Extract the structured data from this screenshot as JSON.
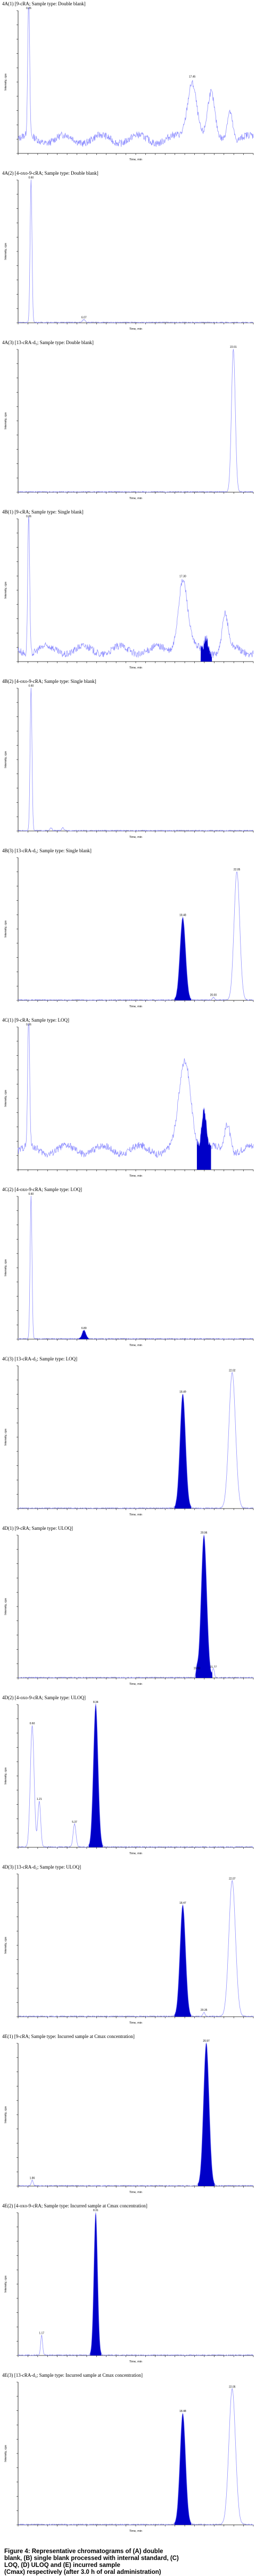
{
  "caption": {
    "line1": "Figure 4: Representative chromatograms of (A) double",
    "line2": "blank, (B) single blank processed with internal standard, (C)",
    "line3": "LOQ, (D) ULOQ and (E) incurred sample",
    "line4_pre": "(Cmax) respectively (after 3.0 h of oral administration)"
  },
  "colors": {
    "trace": "#8c8cff",
    "fill": "#0000c8",
    "axis": "#000000",
    "grid": "#cccccc"
  },
  "chart_data": [
    {
      "type": "line",
      "title": "4A(1) [9-cRA; Sample type: Double blank]",
      "ylabel": "Intensity, cps",
      "xlabel": "Time, min",
      "ylim": [
        0,
        1
      ],
      "xlim": [
        0,
        1
      ],
      "noise": true,
      "baseline": 0.1,
      "peaks": [
        {
          "x": 0.045,
          "h": 1.0,
          "w": 0.004,
          "fill": false,
          "label": "0.26"
        },
        {
          "x": 0.74,
          "h": 0.42,
          "w": 0.02,
          "fill": false,
          "label": "17.45"
        },
        {
          "x": 0.82,
          "h": 0.3,
          "w": 0.015,
          "fill": false,
          "label": ""
        },
        {
          "x": 0.9,
          "h": 0.22,
          "w": 0.012,
          "fill": false,
          "label": ""
        }
      ]
    },
    {
      "type": "line",
      "title": "4A(2) [4-oxo-9-cRA; Sample type: Double blank]",
      "ylabel": "Intensity, cps",
      "xlabel": "Time, min",
      "ylim": [
        0,
        1
      ],
      "xlim": [
        0,
        1
      ],
      "noise": false,
      "baseline": 0.0,
      "peaks": [
        {
          "x": 0.055,
          "h": 1.0,
          "w": 0.004,
          "fill": false,
          "label": "0.60"
        },
        {
          "x": 0.28,
          "h": 0.02,
          "w": 0.006,
          "fill": false,
          "label": "6.07"
        }
      ]
    },
    {
      "type": "line",
      "title": "4A(3) [13-cRA-d₅; Sample type: Double blank]",
      "ylabel": "Intensity, cps",
      "xlabel": "Time, min",
      "ylim": [
        0,
        1
      ],
      "xlim": [
        0,
        1
      ],
      "noise": false,
      "baseline": 0.0,
      "peaks": [
        {
          "x": 0.915,
          "h": 1.0,
          "w": 0.008,
          "fill": false,
          "label": "22.01"
        }
      ]
    },
    {
      "type": "line",
      "title": "4B(1) [9-cRA; Sample type: Single blank]",
      "ylabel": "Intensity, cps",
      "xlabel": "Time, min",
      "ylim": [
        0,
        1
      ],
      "xlim": [
        0,
        1
      ],
      "noise": true,
      "baseline": 0.08,
      "peaks": [
        {
          "x": 0.045,
          "h": 1.0,
          "w": 0.004,
          "fill": false,
          "label": "0.26"
        },
        {
          "x": 0.7,
          "h": 0.5,
          "w": 0.02,
          "fill": false,
          "label": "17.30"
        },
        {
          "x": 0.8,
          "h": 0.1,
          "w": 0.008,
          "fill": true,
          "label": ""
        },
        {
          "x": 0.88,
          "h": 0.24,
          "w": 0.012,
          "fill": false,
          "label": ""
        }
      ]
    },
    {
      "type": "line",
      "title": "4B(2) [4-oxo-9-cRA; Sample type: Single blank]",
      "ylabel": "Intensity, cps",
      "xlabel": "Time, min",
      "ylim": [
        0,
        1
      ],
      "xlim": [
        0,
        1
      ],
      "noise": false,
      "baseline": 0.0,
      "peaks": [
        {
          "x": 0.055,
          "h": 1.0,
          "w": 0.004,
          "fill": false,
          "label": "0.60"
        },
        {
          "x": 0.14,
          "h": 0.02,
          "w": 0.004,
          "fill": false,
          "label": ""
        },
        {
          "x": 0.19,
          "h": 0.02,
          "w": 0.004,
          "fill": false,
          "label": ""
        }
      ]
    },
    {
      "type": "line",
      "title": "4B(3) [13-cRA-d₅; Sample type: Single blank]",
      "ylabel": "Intensity, cps",
      "xlabel": "Time, min",
      "ylim": [
        0,
        1
      ],
      "xlim": [
        0,
        1
      ],
      "noise": false,
      "baseline": 0.0,
      "peaks": [
        {
          "x": 0.7,
          "h": 0.58,
          "w": 0.012,
          "fill": true,
          "label": "18.48"
        },
        {
          "x": 0.93,
          "h": 0.9,
          "w": 0.012,
          "fill": false,
          "label": "22.05"
        },
        {
          "x": 0.83,
          "h": 0.02,
          "w": 0.004,
          "fill": false,
          "label": "20.00"
        }
      ]
    },
    {
      "type": "line",
      "title": "4C(1) [9-cRA; Sample type: LOQ]",
      "ylabel": "Intensity, cps",
      "xlabel": "Time, min",
      "ylim": [
        0,
        1
      ],
      "xlim": [
        0,
        1
      ],
      "noise": true,
      "baseline": 0.14,
      "peaks": [
        {
          "x": 0.045,
          "h": 1.0,
          "w": 0.004,
          "fill": false,
          "label": "0.26"
        },
        {
          "x": 0.71,
          "h": 0.62,
          "w": 0.025,
          "fill": false,
          "label": ""
        },
        {
          "x": 0.79,
          "h": 0.28,
          "w": 0.01,
          "fill": true,
          "label": ""
        },
        {
          "x": 0.89,
          "h": 0.2,
          "w": 0.012,
          "fill": false,
          "label": ""
        }
      ]
    },
    {
      "type": "line",
      "title": "4C(2) [4-oxo-9-cRA; Sample type: LOQ]",
      "ylabel": "Intensity, cps",
      "xlabel": "Time, min",
      "ylim": [
        0,
        1
      ],
      "xlim": [
        0,
        1
      ],
      "noise": false,
      "baseline": 0.0,
      "peaks": [
        {
          "x": 0.055,
          "h": 1.0,
          "w": 0.004,
          "fill": false,
          "label": "0.60"
        },
        {
          "x": 0.28,
          "h": 0.06,
          "w": 0.008,
          "fill": true,
          "label": "6.89"
        }
      ]
    },
    {
      "type": "line",
      "title": "4C(3) [13-cRA-d₅; Sample type: LOQ]",
      "ylabel": "Intensity, cps",
      "xlabel": "Time, min",
      "ylim": [
        0,
        1
      ],
      "xlim": [
        0,
        1
      ],
      "noise": false,
      "baseline": 0.0,
      "peaks": [
        {
          "x": 0.7,
          "h": 0.8,
          "w": 0.012,
          "fill": true,
          "label": "18.49"
        },
        {
          "x": 0.91,
          "h": 0.95,
          "w": 0.014,
          "fill": false,
          "label": "22.02"
        }
      ]
    },
    {
      "type": "line",
      "title": "4D(1) [9-cRA; Sample type: ULOQ]",
      "ylabel": "Intensity, cps",
      "xlabel": "Time, min",
      "ylim": [
        0,
        1
      ],
      "xlim": [
        0,
        1
      ],
      "noise": false,
      "baseline": 0.0,
      "peaks": [
        {
          "x": 0.79,
          "h": 1.0,
          "w": 0.012,
          "fill": true,
          "label": "20.96"
        },
        {
          "x": 0.76,
          "h": 0.05,
          "w": 0.004,
          "fill": false,
          "label": "19.93"
        },
        {
          "x": 0.83,
          "h": 0.06,
          "w": 0.004,
          "fill": false,
          "label": "21.77"
        }
      ]
    },
    {
      "type": "line",
      "title": "4D(2) [4-oxo-9-cRA; Sample type: ULOQ]",
      "ylabel": "Intensity, cps",
      "xlabel": "Time, min",
      "ylim": [
        0,
        1
      ],
      "xlim": [
        0,
        1
      ],
      "noise": false,
      "baseline": 0.0,
      "peaks": [
        {
          "x": 0.06,
          "h": 0.85,
          "w": 0.008,
          "fill": false,
          "label": "0.60"
        },
        {
          "x": 0.09,
          "h": 0.32,
          "w": 0.006,
          "fill": false,
          "label": "1.21"
        },
        {
          "x": 0.24,
          "h": 0.16,
          "w": 0.006,
          "fill": false,
          "label": "5.37"
        },
        {
          "x": 0.33,
          "h": 1.0,
          "w": 0.01,
          "fill": true,
          "label": "8.34"
        }
      ]
    },
    {
      "type": "line",
      "title": "4D(3) [13-cRA-d₅; Sample type: ULOQ]",
      "ylabel": "Intensity, cps",
      "xlabel": "Time, min",
      "ylim": [
        0,
        1
      ],
      "xlim": [
        0,
        1
      ],
      "noise": false,
      "baseline": 0.0,
      "peaks": [
        {
          "x": 0.7,
          "h": 0.78,
          "w": 0.012,
          "fill": true,
          "label": "18.47"
        },
        {
          "x": 0.79,
          "h": 0.03,
          "w": 0.004,
          "fill": false,
          "label": "20.35"
        },
        {
          "x": 0.91,
          "h": 0.95,
          "w": 0.014,
          "fill": false,
          "label": "22.07"
        }
      ]
    },
    {
      "type": "line",
      "title": "4E(1) [9-cRA; Sample type: Incurred sample at Cmax concentration]",
      "ylabel": "Intensity, cps",
      "xlabel": "Time, min",
      "ylim": [
        0,
        1
      ],
      "xlim": [
        0,
        1
      ],
      "noise": false,
      "baseline": 0.0,
      "peaks": [
        {
          "x": 0.06,
          "h": 0.04,
          "w": 0.004,
          "fill": false,
          "label": "1.86"
        },
        {
          "x": 0.8,
          "h": 1.0,
          "w": 0.012,
          "fill": true,
          "label": "20.97"
        }
      ]
    },
    {
      "type": "line",
      "title": "4E(2) [4-oxo-9-cRA; Sample type: Incurred sample at Cmax concentration]",
      "ylabel": "Intensity, cps",
      "xlabel": "Time, min",
      "ylim": [
        0,
        1
      ],
      "xlim": [
        0,
        1
      ],
      "noise": false,
      "baseline": 0.0,
      "peaks": [
        {
          "x": 0.1,
          "h": 0.14,
          "w": 0.004,
          "fill": false,
          "label": "1.17"
        },
        {
          "x": 0.33,
          "h": 1.0,
          "w": 0.008,
          "fill": true,
          "label": "8.31"
        }
      ]
    },
    {
      "type": "line",
      "title": "4E(3) [13-cRA-d₅; Sample type: Incurred sample at Cmax concentration]",
      "ylabel": "Intensity, cps",
      "xlabel": "Time, min",
      "ylim": [
        0,
        1
      ],
      "xlim": [
        0,
        1
      ],
      "noise": false,
      "baseline": 0.0,
      "peaks": [
        {
          "x": 0.7,
          "h": 0.78,
          "w": 0.012,
          "fill": true,
          "label": "18.48"
        },
        {
          "x": 0.91,
          "h": 0.95,
          "w": 0.014,
          "fill": false,
          "label": "22.05"
        }
      ]
    }
  ]
}
